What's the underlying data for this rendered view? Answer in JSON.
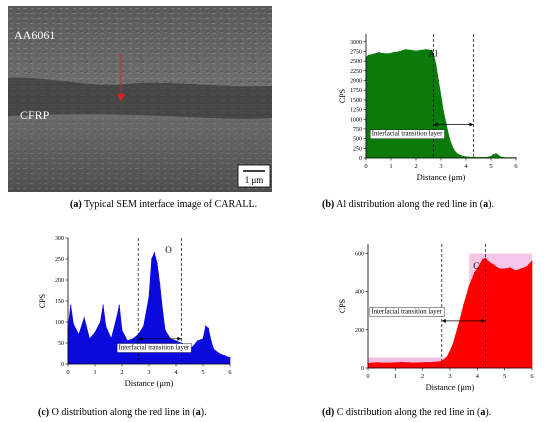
{
  "sem": {
    "label_top": "AA6061",
    "label_bottom": "CFRP",
    "scale_bar": "1 μm",
    "caption_letter": "(a)",
    "caption_text": " Typical SEM interface image of CARALL."
  },
  "captions": [
    {
      "letter": "(b)",
      "text": " Al distribution along the red line in (",
      "ref": "a",
      "end": ")."
    },
    {
      "letter": "(c)",
      "text": " O distribution along the red line in (",
      "ref": "a",
      "end": ")."
    },
    {
      "letter": "(d)",
      "text": " C distribution along the red line in (",
      "ref": "a",
      "end": ")."
    }
  ],
  "chart_data": [
    {
      "type": "area",
      "element_label": "Al",
      "xlabel": "Distance (μm)",
      "ylabel": "CPS",
      "xlim": [
        0,
        6
      ],
      "ylim": [
        0,
        3200
      ],
      "xticks": [
        0,
        1,
        2,
        3,
        4,
        5,
        6
      ],
      "yticks": [
        0,
        250,
        500,
        750,
        1000,
        1250,
        1500,
        1750,
        2000,
        2250,
        2500,
        2750,
        3000
      ],
      "color": "#0a7a0a",
      "annotation": "Interfacial transition layer",
      "dashed_x": [
        2.7,
        4.3
      ],
      "x": [
        0,
        0.1,
        0.3,
        0.5,
        0.7,
        0.9,
        1.1,
        1.3,
        1.5,
        1.6,
        1.8,
        2.0,
        2.2,
        2.4,
        2.6,
        2.7,
        2.8,
        2.9,
        3.0,
        3.1,
        3.2,
        3.3,
        3.4,
        3.5,
        3.6,
        3.7,
        3.8,
        3.9,
        4.0,
        4.2,
        4.4,
        4.6,
        4.8,
        5.0,
        5.1,
        5.2,
        5.3,
        5.4,
        5.6,
        5.8,
        6.0
      ],
      "y": [
        2600,
        2650,
        2680,
        2720,
        2700,
        2690,
        2720,
        2740,
        2780,
        2800,
        2780,
        2760,
        2780,
        2800,
        2780,
        2700,
        2400,
        2000,
        1600,
        1200,
        900,
        600,
        380,
        230,
        140,
        90,
        60,
        40,
        30,
        20,
        15,
        15,
        15,
        40,
        90,
        110,
        70,
        20,
        10,
        10,
        10
      ]
    },
    {
      "type": "area",
      "element_label": "O",
      "xlabel": "Distance (μm)",
      "ylabel": "CPS",
      "xlim": [
        0,
        6
      ],
      "ylim": [
        0,
        300
      ],
      "xticks": [
        0,
        1,
        2,
        3,
        4,
        5,
        6
      ],
      "yticks": [
        0,
        50,
        100,
        150,
        200,
        250,
        300
      ],
      "color": "#0a0adc",
      "annotation": "Interfacial transition layer",
      "dashed_x": [
        2.6,
        4.2
      ],
      "x": [
        0,
        0.1,
        0.2,
        0.4,
        0.6,
        0.8,
        1.0,
        1.2,
        1.3,
        1.4,
        1.6,
        1.8,
        1.9,
        2.0,
        2.2,
        2.4,
        2.6,
        2.8,
        3.0,
        3.1,
        3.2,
        3.3,
        3.4,
        3.5,
        3.6,
        3.8,
        4.0,
        4.2,
        4.4,
        4.6,
        4.8,
        5.0,
        5.1,
        5.2,
        5.3,
        5.4,
        5.6,
        5.8,
        6.0
      ],
      "y": [
        85,
        140,
        95,
        70,
        110,
        60,
        75,
        100,
        140,
        90,
        60,
        110,
        140,
        80,
        55,
        60,
        70,
        90,
        160,
        250,
        265,
        240,
        190,
        130,
        80,
        60,
        55,
        50,
        45,
        40,
        55,
        60,
        90,
        85,
        55,
        35,
        25,
        20,
        15
      ]
    },
    {
      "type": "area",
      "element_label": "C",
      "xlabel": "Distance (μm)",
      "ylabel": "CPS",
      "xlim": [
        0,
        6
      ],
      "ylim": [
        0,
        650
      ],
      "xticks": [
        0,
        1,
        2,
        3,
        4,
        5,
        6
      ],
      "yticks": [
        0,
        200,
        400,
        600
      ],
      "color": "#ff0000",
      "annotation": "Interfacial transition layer",
      "dashed_x": [
        2.7,
        4.3
      ],
      "x": [
        0,
        0.3,
        0.6,
        0.9,
        1.2,
        1.5,
        1.8,
        2.1,
        2.4,
        2.7,
        2.9,
        3.1,
        3.3,
        3.5,
        3.7,
        3.9,
        4.1,
        4.2,
        4.3,
        4.4,
        4.6,
        4.8,
        5.0,
        5.2,
        5.4,
        5.6,
        5.8,
        6.0
      ],
      "y": [
        25,
        28,
        26,
        27,
        30,
        28,
        27,
        29,
        30,
        35,
        60,
        120,
        220,
        330,
        430,
        500,
        545,
        570,
        575,
        560,
        540,
        520,
        520,
        525,
        510,
        520,
        530,
        560
      ]
    }
  ]
}
